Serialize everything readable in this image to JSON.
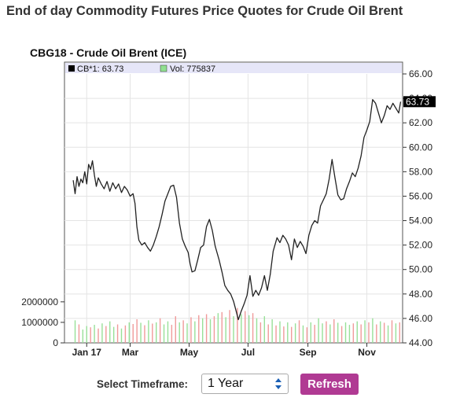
{
  "page": {
    "title": "End of day Commodity Futures Price Quotes for Crude Oil Brent"
  },
  "timeframe": {
    "label": "Select Timeframe:",
    "selected": "1 Year",
    "refresh_label": "Refresh"
  },
  "chart_data": {
    "type": "line",
    "title": "CBG18 - Crude Oil Brent (ICE)",
    "legend": [
      {
        "marker_color": "#000000",
        "text": "CB*1: 63.73"
      },
      {
        "marker_color": "#90e090",
        "text": "Vol: 775837"
      }
    ],
    "last_value_label": "63.73",
    "price_axis": {
      "side": "right",
      "min": 44,
      "max": 66,
      "ticks": [
        "66.00",
        "64.00",
        "62.00",
        "60.00",
        "58.00",
        "56.00",
        "54.00",
        "52.00",
        "50.00",
        "48.00",
        "46.00",
        "44.00"
      ]
    },
    "volume_axis": {
      "side": "left",
      "min": 0,
      "max": 2300000,
      "ticks": [
        "2000000",
        "1000000",
        "0"
      ]
    },
    "x_axis": {
      "labels": [
        "Jan 17",
        "Mar",
        "May",
        "Jul",
        "Sep",
        "Nov"
      ]
    },
    "colors": {
      "price_line": "#222222",
      "volume_up": "#98e098",
      "volume_down": "#f09a9a",
      "plot_bg": "#ffffff",
      "legend_bg": "#e6e6f8"
    },
    "price_series": [
      {
        "x": "2017-01-01",
        "y": 57.3
      },
      {
        "x": "2017-01-03",
        "y": 56.2
      },
      {
        "x": "2017-01-05",
        "y": 57.6
      },
      {
        "x": "2017-01-07",
        "y": 56.8
      },
      {
        "x": "2017-01-09",
        "y": 57.4
      },
      {
        "x": "2017-01-11",
        "y": 57.1
      },
      {
        "x": "2017-01-13",
        "y": 58.0
      },
      {
        "x": "2017-01-15",
        "y": 57.0
      },
      {
        "x": "2017-01-17",
        "y": 58.6
      },
      {
        "x": "2017-01-19",
        "y": 58.2
      },
      {
        "x": "2017-01-21",
        "y": 58.9
      },
      {
        "x": "2017-01-23",
        "y": 57.7
      },
      {
        "x": "2017-01-25",
        "y": 56.8
      },
      {
        "x": "2017-01-27",
        "y": 57.5
      },
      {
        "x": "2017-01-30",
        "y": 57.0
      },
      {
        "x": "2017-02-02",
        "y": 56.6
      },
      {
        "x": "2017-02-05",
        "y": 57.2
      },
      {
        "x": "2017-02-08",
        "y": 56.4
      },
      {
        "x": "2017-02-11",
        "y": 57.1
      },
      {
        "x": "2017-02-14",
        "y": 56.6
      },
      {
        "x": "2017-02-17",
        "y": 57.0
      },
      {
        "x": "2017-02-20",
        "y": 56.3
      },
      {
        "x": "2017-02-23",
        "y": 56.8
      },
      {
        "x": "2017-02-26",
        "y": 56.5
      },
      {
        "x": "2017-03-01",
        "y": 56.0
      },
      {
        "x": "2017-03-04",
        "y": 56.2
      },
      {
        "x": "2017-03-06",
        "y": 55.4
      },
      {
        "x": "2017-03-08",
        "y": 53.5
      },
      {
        "x": "2017-03-10",
        "y": 52.4
      },
      {
        "x": "2017-03-13",
        "y": 52.0
      },
      {
        "x": "2017-03-16",
        "y": 52.2
      },
      {
        "x": "2017-03-19",
        "y": 51.8
      },
      {
        "x": "2017-03-22",
        "y": 51.5
      },
      {
        "x": "2017-03-25",
        "y": 52.0
      },
      {
        "x": "2017-03-28",
        "y": 52.7
      },
      {
        "x": "2017-03-31",
        "y": 53.5
      },
      {
        "x": "2017-04-03",
        "y": 54.5
      },
      {
        "x": "2017-04-06",
        "y": 55.6
      },
      {
        "x": "2017-04-09",
        "y": 56.2
      },
      {
        "x": "2017-04-12",
        "y": 56.8
      },
      {
        "x": "2017-04-15",
        "y": 56.9
      },
      {
        "x": "2017-04-18",
        "y": 55.9
      },
      {
        "x": "2017-04-21",
        "y": 53.8
      },
      {
        "x": "2017-04-24",
        "y": 52.5
      },
      {
        "x": "2017-04-27",
        "y": 51.9
      },
      {
        "x": "2017-04-30",
        "y": 51.4
      },
      {
        "x": "2017-05-02",
        "y": 50.5
      },
      {
        "x": "2017-05-04",
        "y": 49.8
      },
      {
        "x": "2017-05-07",
        "y": 49.9
      },
      {
        "x": "2017-05-10",
        "y": 50.8
      },
      {
        "x": "2017-05-13",
        "y": 51.8
      },
      {
        "x": "2017-05-16",
        "y": 52.0
      },
      {
        "x": "2017-05-19",
        "y": 53.5
      },
      {
        "x": "2017-05-22",
        "y": 54.1
      },
      {
        "x": "2017-05-25",
        "y": 53.2
      },
      {
        "x": "2017-05-28",
        "y": 51.9
      },
      {
        "x": "2017-06-01",
        "y": 50.8
      },
      {
        "x": "2017-06-04",
        "y": 49.8
      },
      {
        "x": "2017-06-07",
        "y": 48.7
      },
      {
        "x": "2017-06-10",
        "y": 48.3
      },
      {
        "x": "2017-06-13",
        "y": 48.0
      },
      {
        "x": "2017-06-16",
        "y": 47.4
      },
      {
        "x": "2017-06-19",
        "y": 46.5
      },
      {
        "x": "2017-06-21",
        "y": 45.9
      },
      {
        "x": "2017-06-24",
        "y": 46.6
      },
      {
        "x": "2017-06-27",
        "y": 47.2
      },
      {
        "x": "2017-06-30",
        "y": 47.9
      },
      {
        "x": "2017-07-03",
        "y": 49.5
      },
      {
        "x": "2017-07-06",
        "y": 47.8
      },
      {
        "x": "2017-07-09",
        "y": 48.3
      },
      {
        "x": "2017-07-12",
        "y": 47.9
      },
      {
        "x": "2017-07-15",
        "y": 48.5
      },
      {
        "x": "2017-07-18",
        "y": 49.5
      },
      {
        "x": "2017-07-21",
        "y": 48.3
      },
      {
        "x": "2017-07-24",
        "y": 49.6
      },
      {
        "x": "2017-07-27",
        "y": 51.5
      },
      {
        "x": "2017-07-31",
        "y": 52.6
      },
      {
        "x": "2017-08-03",
        "y": 52.2
      },
      {
        "x": "2017-08-06",
        "y": 52.8
      },
      {
        "x": "2017-08-09",
        "y": 52.5
      },
      {
        "x": "2017-08-12",
        "y": 52.0
      },
      {
        "x": "2017-08-15",
        "y": 50.8
      },
      {
        "x": "2017-08-18",
        "y": 52.5
      },
      {
        "x": "2017-08-21",
        "y": 51.8
      },
      {
        "x": "2017-08-24",
        "y": 52.3
      },
      {
        "x": "2017-08-27",
        "y": 51.9
      },
      {
        "x": "2017-08-30",
        "y": 51.3
      },
      {
        "x": "2017-09-02",
        "y": 52.8
      },
      {
        "x": "2017-09-05",
        "y": 53.6
      },
      {
        "x": "2017-09-08",
        "y": 54.0
      },
      {
        "x": "2017-09-11",
        "y": 53.8
      },
      {
        "x": "2017-09-14",
        "y": 55.2
      },
      {
        "x": "2017-09-17",
        "y": 55.7
      },
      {
        "x": "2017-09-20",
        "y": 56.2
      },
      {
        "x": "2017-09-23",
        "y": 57.4
      },
      {
        "x": "2017-09-26",
        "y": 59.0
      },
      {
        "x": "2017-09-29",
        "y": 57.5
      },
      {
        "x": "2017-10-02",
        "y": 56.1
      },
      {
        "x": "2017-10-05",
        "y": 55.7
      },
      {
        "x": "2017-10-08",
        "y": 55.8
      },
      {
        "x": "2017-10-11",
        "y": 56.6
      },
      {
        "x": "2017-10-14",
        "y": 57.2
      },
      {
        "x": "2017-10-17",
        "y": 57.9
      },
      {
        "x": "2017-10-20",
        "y": 57.6
      },
      {
        "x": "2017-10-23",
        "y": 58.3
      },
      {
        "x": "2017-10-26",
        "y": 59.3
      },
      {
        "x": "2017-10-29",
        "y": 60.8
      },
      {
        "x": "2017-11-01",
        "y": 61.4
      },
      {
        "x": "2017-11-04",
        "y": 62.1
      },
      {
        "x": "2017-11-07",
        "y": 63.9
      },
      {
        "x": "2017-11-10",
        "y": 63.6
      },
      {
        "x": "2017-11-13",
        "y": 62.8
      },
      {
        "x": "2017-11-16",
        "y": 62.0
      },
      {
        "x": "2017-11-19",
        "y": 62.6
      },
      {
        "x": "2017-11-22",
        "y": 63.4
      },
      {
        "x": "2017-11-25",
        "y": 63.1
      },
      {
        "x": "2017-11-28",
        "y": 63.6
      },
      {
        "x": "2017-12-01",
        "y": 63.2
      },
      {
        "x": "2017-12-04",
        "y": 62.8
      },
      {
        "x": "2017-12-06",
        "y": 63.73
      }
    ],
    "volume_series": [
      {
        "x": "2017-01-03",
        "up": true,
        "v": 1100000
      },
      {
        "x": "2017-01-07",
        "up": false,
        "v": 900000
      },
      {
        "x": "2017-01-11",
        "up": true,
        "v": 650000
      },
      {
        "x": "2017-01-15",
        "up": true,
        "v": 820000
      },
      {
        "x": "2017-01-19",
        "up": false,
        "v": 760000
      },
      {
        "x": "2017-01-23",
        "up": true,
        "v": 880000
      },
      {
        "x": "2017-01-27",
        "up": false,
        "v": 700000
      },
      {
        "x": "2017-01-31",
        "up": true,
        "v": 950000
      },
      {
        "x": "2017-02-04",
        "up": false,
        "v": 820000
      },
      {
        "x": "2017-02-08",
        "up": true,
        "v": 1050000
      },
      {
        "x": "2017-02-12",
        "up": true,
        "v": 780000
      },
      {
        "x": "2017-02-16",
        "up": false,
        "v": 900000
      },
      {
        "x": "2017-02-20",
        "up": true,
        "v": 700000
      },
      {
        "x": "2017-02-24",
        "up": false,
        "v": 850000
      },
      {
        "x": "2017-02-28",
        "up": true,
        "v": 1000000
      },
      {
        "x": "2017-03-04",
        "up": false,
        "v": 920000
      },
      {
        "x": "2017-03-08",
        "up": false,
        "v": 1150000
      },
      {
        "x": "2017-03-12",
        "up": true,
        "v": 980000
      },
      {
        "x": "2017-03-16",
        "up": false,
        "v": 860000
      },
      {
        "x": "2017-03-20",
        "up": true,
        "v": 1100000
      },
      {
        "x": "2017-03-24",
        "up": false,
        "v": 940000
      },
      {
        "x": "2017-03-28",
        "up": true,
        "v": 1000000
      },
      {
        "x": "2017-04-01",
        "up": false,
        "v": 1200000
      },
      {
        "x": "2017-04-05",
        "up": true,
        "v": 900000
      },
      {
        "x": "2017-04-09",
        "up": true,
        "v": 1050000
      },
      {
        "x": "2017-04-13",
        "up": false,
        "v": 880000
      },
      {
        "x": "2017-04-17",
        "up": false,
        "v": 1300000
      },
      {
        "x": "2017-04-21",
        "up": true,
        "v": 1000000
      },
      {
        "x": "2017-04-25",
        "up": false,
        "v": 1100000
      },
      {
        "x": "2017-04-29",
        "up": true,
        "v": 950000
      },
      {
        "x": "2017-05-03",
        "up": false,
        "v": 1250000
      },
      {
        "x": "2017-05-07",
        "up": true,
        "v": 1050000
      },
      {
        "x": "2017-05-11",
        "up": false,
        "v": 1350000
      },
      {
        "x": "2017-05-15",
        "up": true,
        "v": 1200000
      },
      {
        "x": "2017-05-19",
        "up": false,
        "v": 1400000
      },
      {
        "x": "2017-05-23",
        "up": true,
        "v": 1150000
      },
      {
        "x": "2017-05-27",
        "up": false,
        "v": 1300000
      },
      {
        "x": "2017-05-31",
        "up": true,
        "v": 1450000
      },
      {
        "x": "2017-06-04",
        "up": false,
        "v": 1500000
      },
      {
        "x": "2017-06-08",
        "up": true,
        "v": 1250000
      },
      {
        "x": "2017-06-12",
        "up": false,
        "v": 1600000
      },
      {
        "x": "2017-06-16",
        "up": true,
        "v": 1300000
      },
      {
        "x": "2017-06-20",
        "up": false,
        "v": 1700000
      },
      {
        "x": "2017-06-24",
        "up": true,
        "v": 1400000
      },
      {
        "x": "2017-06-28",
        "up": false,
        "v": 1550000
      },
      {
        "x": "2017-07-02",
        "up": true,
        "v": 1350000
      },
      {
        "x": "2017-07-06",
        "up": false,
        "v": 1450000
      },
      {
        "x": "2017-07-10",
        "up": true,
        "v": 1200000
      },
      {
        "x": "2017-07-14",
        "up": false,
        "v": 1000000
      },
      {
        "x": "2017-07-18",
        "up": true,
        "v": 1300000
      },
      {
        "x": "2017-07-22",
        "up": false,
        "v": 900000
      },
      {
        "x": "2017-07-26",
        "up": true,
        "v": 1150000
      },
      {
        "x": "2017-07-30",
        "up": false,
        "v": 850000
      },
      {
        "x": "2017-08-03",
        "up": true,
        "v": 1050000
      },
      {
        "x": "2017-08-07",
        "up": false,
        "v": 800000
      },
      {
        "x": "2017-08-11",
        "up": true,
        "v": 1000000
      },
      {
        "x": "2017-08-15",
        "up": false,
        "v": 780000
      },
      {
        "x": "2017-08-19",
        "up": true,
        "v": 950000
      },
      {
        "x": "2017-08-23",
        "up": false,
        "v": 1100000
      },
      {
        "x": "2017-08-27",
        "up": true,
        "v": 850000
      },
      {
        "x": "2017-08-31",
        "up": false,
        "v": 760000
      },
      {
        "x": "2017-09-04",
        "up": true,
        "v": 1000000
      },
      {
        "x": "2017-09-08",
        "up": false,
        "v": 880000
      },
      {
        "x": "2017-09-12",
        "up": true,
        "v": 1200000
      },
      {
        "x": "2017-09-16",
        "up": true,
        "v": 950000
      },
      {
        "x": "2017-09-20",
        "up": false,
        "v": 1050000
      },
      {
        "x": "2017-09-24",
        "up": true,
        "v": 900000
      },
      {
        "x": "2017-09-28",
        "up": false,
        "v": 1150000
      },
      {
        "x": "2017-10-02",
        "up": true,
        "v": 980000
      },
      {
        "x": "2017-10-06",
        "up": false,
        "v": 820000
      },
      {
        "x": "2017-10-10",
        "up": true,
        "v": 1000000
      },
      {
        "x": "2017-10-14",
        "up": true,
        "v": 880000
      },
      {
        "x": "2017-10-18",
        "up": false,
        "v": 950000
      },
      {
        "x": "2017-10-22",
        "up": true,
        "v": 1050000
      },
      {
        "x": "2017-10-26",
        "up": false,
        "v": 900000
      },
      {
        "x": "2017-10-30",
        "up": true,
        "v": 1100000
      },
      {
        "x": "2017-11-03",
        "up": false,
        "v": 1000000
      },
      {
        "x": "2017-11-07",
        "up": true,
        "v": 1200000
      },
      {
        "x": "2017-11-11",
        "up": false,
        "v": 900000
      },
      {
        "x": "2017-11-15",
        "up": true,
        "v": 1050000
      },
      {
        "x": "2017-11-19",
        "up": false,
        "v": 980000
      },
      {
        "x": "2017-11-23",
        "up": true,
        "v": 850000
      },
      {
        "x": "2017-11-27",
        "up": false,
        "v": 1100000
      },
      {
        "x": "2017-12-01",
        "up": true,
        "v": 950000
      },
      {
        "x": "2017-12-05",
        "up": false,
        "v": 1000000
      }
    ]
  }
}
